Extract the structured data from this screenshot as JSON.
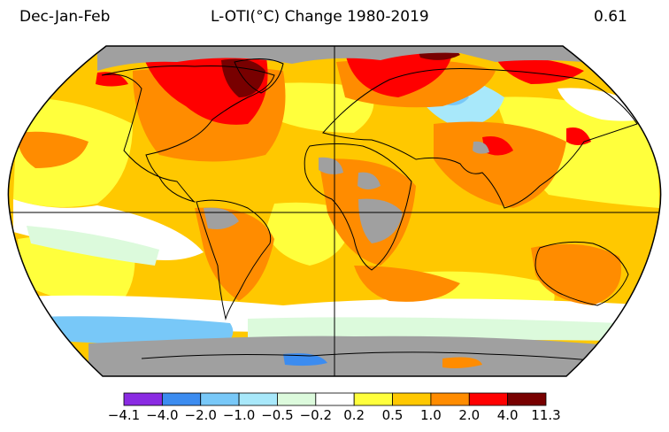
{
  "header": {
    "season": "Dec-Jan-Feb",
    "title": "L-OTI(°C) Change 1980-2019",
    "global_mean": "0.61"
  },
  "colorbar": {
    "ticks": [
      "−4.1",
      "−4.0",
      "−2.0",
      "−1.0",
      "−0.5",
      "−0.2",
      "0.2",
      "0.5",
      "1.0",
      "2.0",
      "4.0",
      "11.3"
    ],
    "colors": [
      "#8a2be2",
      "#3c8cf0",
      "#78c8f8",
      "#a8e8fa",
      "#dcfadc",
      "#ffffff",
      "#ffff3c",
      "#ffc800",
      "#ff8c00",
      "#ff0000",
      "#780000"
    ]
  },
  "map": {
    "projection": "Robinson",
    "missing_color": "#a0a0a0",
    "colors": {
      "dark_red": "#780000",
      "red": "#ff0000",
      "orange": "#ff8c00",
      "gold": "#ffc800",
      "yellow": "#ffff3c",
      "white": "#ffffff",
      "pale_green": "#dcfadc",
      "pale_blue": "#a8e8fa",
      "light_blue": "#78c8f8",
      "blue": "#3c8cf0"
    }
  }
}
